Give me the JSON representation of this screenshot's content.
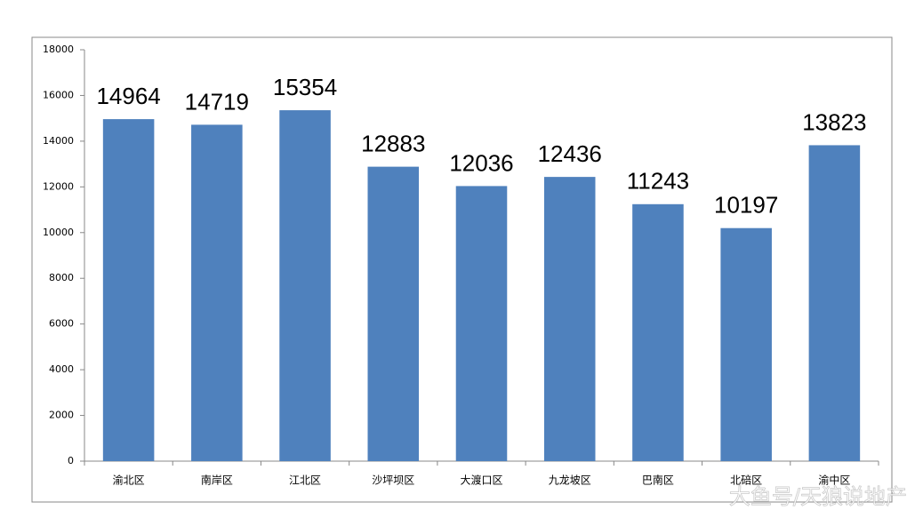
{
  "chart_data": {
    "type": "bar",
    "categories": [
      "渝北区",
      "南岸区",
      "江北区",
      "沙坪坝区",
      "大渡口区",
      "九龙坡区",
      "巴南区",
      "北碚区",
      "渝中区"
    ],
    "values": [
      14964,
      14719,
      15354,
      12883,
      12036,
      12436,
      11243,
      10197,
      13823
    ],
    "color": "#4f81bd",
    "ylim": [
      0,
      18000
    ],
    "yticks": [
      0,
      2000,
      4000,
      6000,
      8000,
      10000,
      12000,
      14000,
      16000,
      18000
    ],
    "grid": false
  },
  "watermark": "大鱼号/天狼说地产"
}
